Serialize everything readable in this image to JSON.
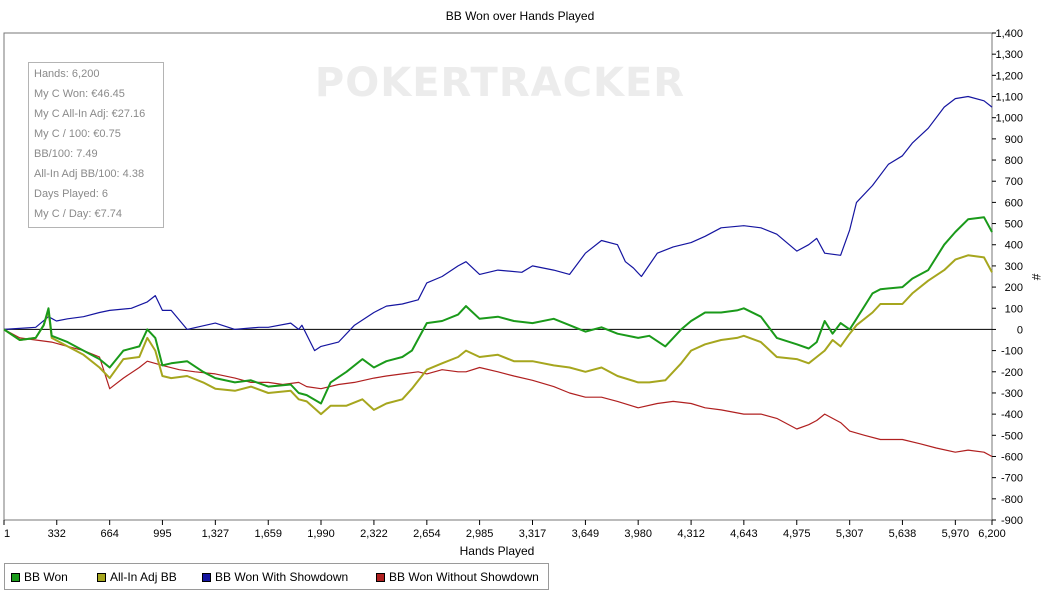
{
  "chart_data": {
    "type": "line",
    "title": "BB Won over Hands Played",
    "xlabel": "Hands Played",
    "ylabel": "#",
    "xlim": [
      1,
      6200
    ],
    "ylim": [
      -900,
      1400
    ],
    "x_ticks": [
      "1",
      "332",
      "664",
      "995",
      "1,327",
      "1,659",
      "1,990",
      "2,322",
      "2,654",
      "2,985",
      "3,317",
      "3,649",
      "3,980",
      "4,312",
      "4,643",
      "4,975",
      "5,307",
      "5,638",
      "5,970",
      "6,200"
    ],
    "y_ticks": [
      "1,400",
      "1,300",
      "1,200",
      "1,100",
      "1,000",
      "900",
      "800",
      "700",
      "600",
      "500",
      "400",
      "300",
      "200",
      "100",
      "0",
      "-100",
      "-200",
      "-300",
      "-400",
      "-500",
      "-600",
      "-700",
      "-800",
      "-900"
    ],
    "grid": false,
    "legend_position": "bottom-left",
    "watermark": "POKERTRACKER",
    "series": [
      {
        "name": "BB Won",
        "color": "#1a9a1a",
        "x": [
          1,
          100,
          200,
          250,
          280,
          300,
          400,
          500,
          600,
          664,
          750,
          850,
          900,
          950,
          995,
          1050,
          1150,
          1250,
          1327,
          1450,
          1550,
          1659,
          1800,
          1850,
          1900,
          1990,
          2050,
          2150,
          2250,
          2322,
          2400,
          2500,
          2560,
          2654,
          2750,
          2850,
          2900,
          2985,
          3100,
          3200,
          3317,
          3450,
          3550,
          3649,
          3750,
          3850,
          3980,
          4050,
          4150,
          4250,
          4312,
          4400,
          4500,
          4600,
          4643,
          4750,
          4850,
          4975,
          5050,
          5100,
          5150,
          5200,
          5250,
          5307,
          5350,
          5450,
          5500,
          5638,
          5700,
          5800,
          5900,
          5970,
          6050,
          6150,
          6200
        ],
        "values": [
          0,
          -50,
          -40,
          20,
          100,
          -30,
          -60,
          -100,
          -140,
          -180,
          -100,
          -80,
          0,
          -40,
          -170,
          -160,
          -150,
          -200,
          -230,
          -250,
          -240,
          -270,
          -260,
          -300,
          -310,
          -350,
          -250,
          -200,
          -140,
          -180,
          -150,
          -130,
          -100,
          30,
          40,
          70,
          110,
          50,
          60,
          40,
          30,
          50,
          20,
          -10,
          10,
          -20,
          -40,
          -30,
          -80,
          0,
          40,
          80,
          80,
          90,
          100,
          60,
          -40,
          -70,
          -90,
          -60,
          40,
          -20,
          30,
          0,
          50,
          170,
          190,
          200,
          240,
          280,
          400,
          460,
          520,
          530,
          460
        ]
      },
      {
        "name": "All-In Adj BB",
        "color": "#a6a61e",
        "x": [
          1,
          100,
          200,
          250,
          280,
          300,
          400,
          500,
          600,
          664,
          750,
          850,
          900,
          950,
          995,
          1050,
          1150,
          1250,
          1327,
          1450,
          1550,
          1659,
          1800,
          1850,
          1900,
          1990,
          2050,
          2150,
          2250,
          2322,
          2400,
          2500,
          2560,
          2654,
          2750,
          2850,
          2900,
          2985,
          3100,
          3200,
          3317,
          3450,
          3550,
          3649,
          3750,
          3850,
          3980,
          4050,
          4150,
          4250,
          4312,
          4400,
          4500,
          4600,
          4643,
          4750,
          4850,
          4975,
          5050,
          5100,
          5150,
          5200,
          5250,
          5307,
          5350,
          5450,
          5500,
          5638,
          5700,
          5800,
          5900,
          5970,
          6050,
          6150,
          6200
        ],
        "values": [
          0,
          -50,
          -40,
          20,
          90,
          -40,
          -80,
          -120,
          -180,
          -230,
          -140,
          -130,
          -40,
          -100,
          -220,
          -230,
          -220,
          -250,
          -280,
          -290,
          -270,
          -300,
          -290,
          -330,
          -340,
          -400,
          -360,
          -360,
          -330,
          -380,
          -350,
          -330,
          -280,
          -190,
          -160,
          -130,
          -100,
          -130,
          -120,
          -150,
          -150,
          -170,
          -180,
          -200,
          -180,
          -220,
          -250,
          -250,
          -240,
          -160,
          -100,
          -70,
          -50,
          -40,
          -30,
          -60,
          -130,
          -140,
          -160,
          -130,
          -100,
          -50,
          -80,
          -20,
          20,
          80,
          120,
          120,
          170,
          230,
          280,
          330,
          350,
          340,
          270
        ]
      },
      {
        "name": "BB Won With Showdown",
        "color": "#1515a0",
        "x": [
          1,
          200,
          280,
          330,
          400,
          500,
          600,
          664,
          800,
          900,
          950,
          995,
          1050,
          1150,
          1327,
          1450,
          1600,
          1659,
          1800,
          1850,
          1870,
          1950,
          1990,
          2100,
          2200,
          2322,
          2400,
          2500,
          2600,
          2654,
          2750,
          2850,
          2900,
          2985,
          3100,
          3250,
          3317,
          3450,
          3550,
          3649,
          3750,
          3850,
          3900,
          3950,
          4000,
          4100,
          4200,
          4312,
          4400,
          4500,
          4643,
          4750,
          4850,
          4975,
          5050,
          5100,
          5150,
          5250,
          5307,
          5350,
          5450,
          5550,
          5638,
          5700,
          5800,
          5900,
          5970,
          6050,
          6150,
          6200
        ],
        "values": [
          0,
          10,
          60,
          40,
          50,
          60,
          80,
          90,
          100,
          130,
          160,
          90,
          90,
          0,
          30,
          0,
          10,
          10,
          30,
          0,
          20,
          -100,
          -80,
          -60,
          20,
          80,
          110,
          120,
          140,
          220,
          250,
          300,
          320,
          260,
          280,
          270,
          300,
          280,
          260,
          360,
          420,
          400,
          320,
          290,
          250,
          360,
          390,
          410,
          440,
          480,
          490,
          480,
          450,
          370,
          400,
          430,
          360,
          350,
          470,
          600,
          680,
          780,
          820,
          880,
          950,
          1050,
          1090,
          1100,
          1080,
          1050
        ]
      },
      {
        "name": "BB Won Without Showdown",
        "color": "#b02020",
        "x": [
          1,
          100,
          200,
          300,
          400,
          500,
          600,
          664,
          750,
          850,
          900,
          995,
          1100,
          1200,
          1327,
          1450,
          1550,
          1659,
          1750,
          1850,
          1900,
          1990,
          2100,
          2200,
          2322,
          2400,
          2500,
          2600,
          2654,
          2750,
          2850,
          2900,
          2985,
          3100,
          3200,
          3317,
          3450,
          3550,
          3649,
          3750,
          3850,
          3980,
          4100,
          4200,
          4312,
          4400,
          4500,
          4643,
          4750,
          4850,
          4975,
          5050,
          5100,
          5150,
          5250,
          5307,
          5400,
          5500,
          5638,
          5750,
          5850,
          5970,
          6050,
          6150,
          6200
        ],
        "values": [
          0,
          -40,
          -50,
          -60,
          -80,
          -100,
          -130,
          -280,
          -230,
          -180,
          -150,
          -170,
          -190,
          -200,
          -210,
          -230,
          -250,
          -250,
          -260,
          -250,
          -270,
          -280,
          -260,
          -250,
          -230,
          -220,
          -210,
          -200,
          -210,
          -190,
          -200,
          -200,
          -180,
          -200,
          -220,
          -240,
          -270,
          -300,
          -320,
          -320,
          -340,
          -370,
          -350,
          -340,
          -350,
          -370,
          -380,
          -400,
          -400,
          -420,
          -470,
          -450,
          -430,
          -400,
          -440,
          -480,
          -500,
          -520,
          -520,
          -540,
          -560,
          -580,
          -570,
          -580,
          -600
        ]
      }
    ]
  },
  "stats": [
    "Hands: 6,200",
    "My C Won: €46.45",
    "My C All-In Adj: €27.16",
    "My C / 100: €0.75",
    "BB/100: 7.49",
    "All-In Adj BB/100: 4.38",
    "Days Played: 6",
    "My C / Day: €7.74"
  ]
}
